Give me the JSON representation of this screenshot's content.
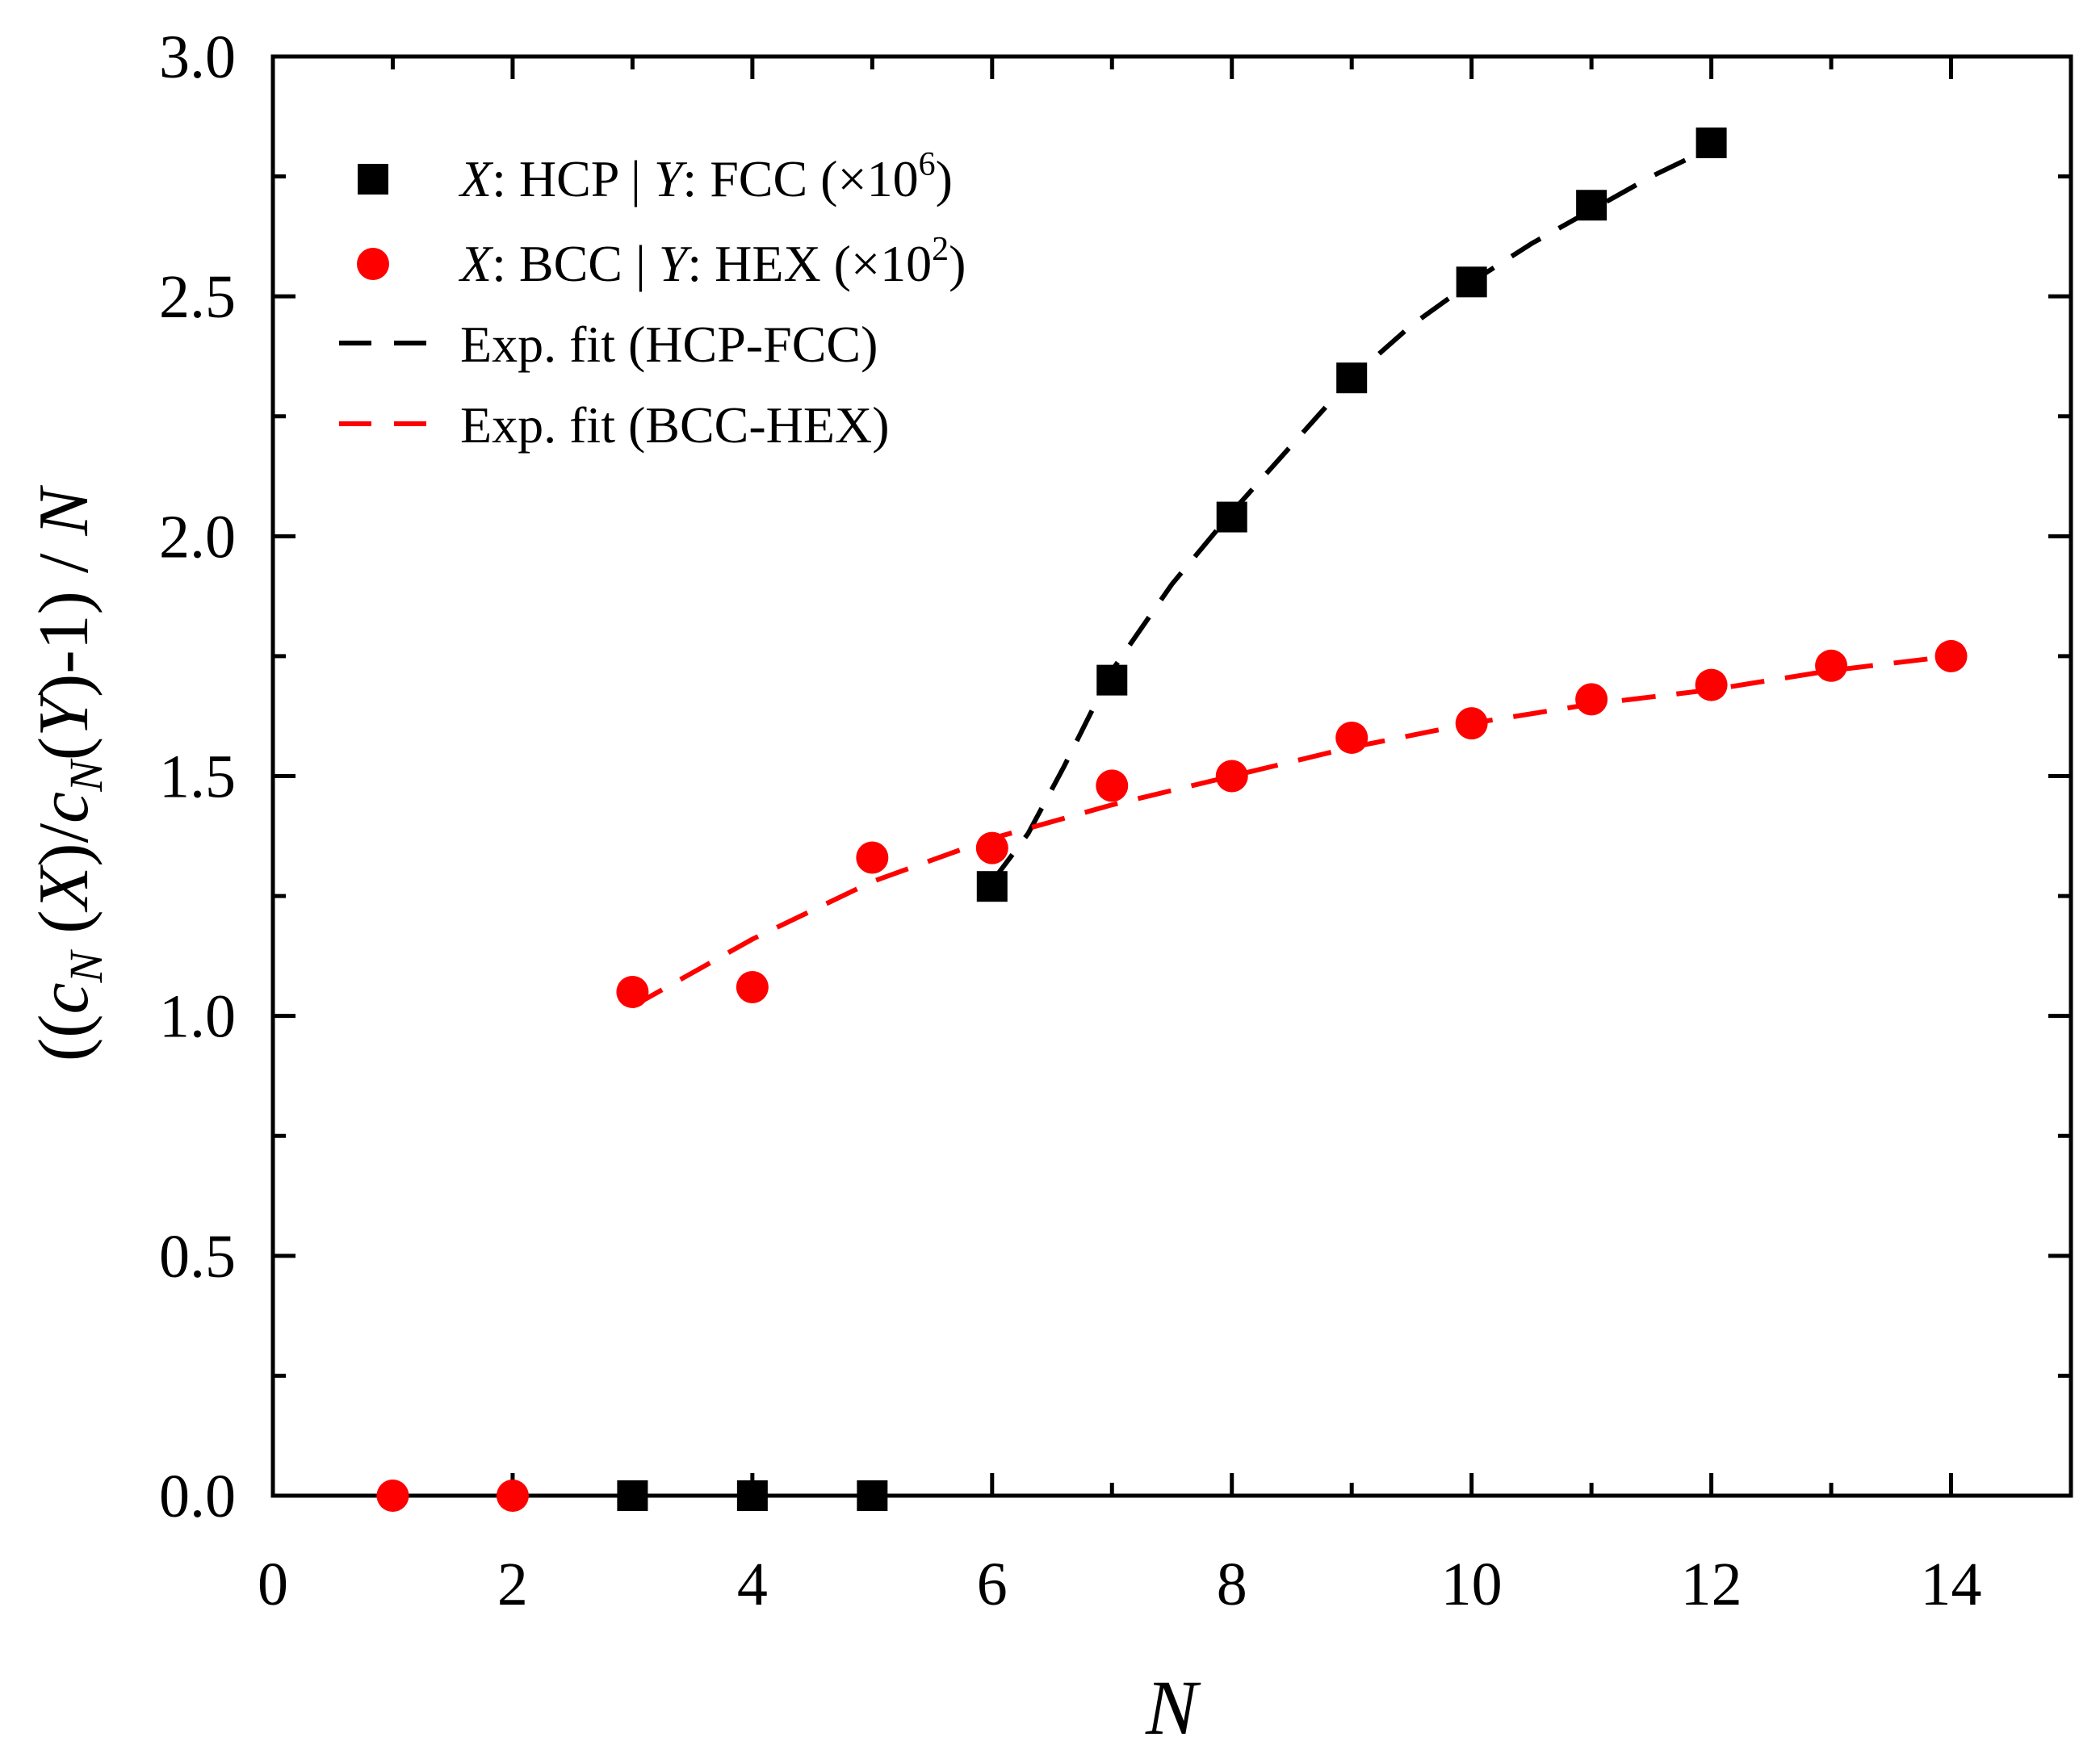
{
  "chart_data": {
    "type": "scatter",
    "xlabel": "N",
    "ylabel_parts": [
      "((",
      "c",
      "N",
      " (",
      "X",
      ")/",
      "c",
      "N",
      "(",
      "Y",
      ")-1) / ",
      "N"
    ],
    "xlim": [
      0,
      15
    ],
    "ylim": [
      0,
      3.0
    ],
    "x_ticks": [
      0,
      2,
      4,
      6,
      8,
      10,
      12,
      14
    ],
    "x_tick_labels": [
      "0",
      "2",
      "4",
      "6",
      "8",
      "10",
      "12",
      "14"
    ],
    "y_ticks": [
      0,
      0.5,
      1.0,
      1.5,
      2.0,
      2.5,
      3.0
    ],
    "y_tick_labels": [
      "0.0",
      "0.5",
      "1.0",
      "1.5",
      "2.0",
      "2.5",
      "3.0"
    ],
    "legend_position": "top-left",
    "series": [
      {
        "name": "X: HCP | Y: FCC (×10^6)",
        "legend": {
          "x": "X",
          "sep1": ": HCP | ",
          "y": "Y",
          "sep2": ": FCC (×10",
          "exp": "6",
          "end": ")"
        },
        "marker": "square",
        "color": "#000000",
        "x": [
          3,
          4,
          5,
          6,
          7,
          8,
          9,
          10,
          11,
          12
        ],
        "y": [
          0.0,
          0.0,
          0.0,
          1.27,
          1.7,
          2.04,
          2.33,
          2.53,
          2.69,
          2.82
        ]
      },
      {
        "name": "X: BCC | Y: HEX (×10^2)",
        "legend": {
          "x": "X",
          "sep1": ": BCC | ",
          "y": "Y",
          "sep2": ": HEX (×10",
          "exp": "2",
          "end": ")"
        },
        "marker": "circle",
        "color": "#ff0000",
        "x": [
          1,
          2,
          3,
          4,
          5,
          6,
          7,
          8,
          9,
          10,
          11,
          12,
          13,
          14
        ],
        "y": [
          0.0,
          0.0,
          1.05,
          1.06,
          1.33,
          1.35,
          1.48,
          1.5,
          1.58,
          1.61,
          1.66,
          1.69,
          1.73,
          1.75
        ]
      }
    ],
    "fits": [
      {
        "name": "Exp. fit (HCP-FCC)",
        "style": "dashed",
        "color": "#000000",
        "x": [
          6.0,
          6.3,
          6.6,
          7.0,
          7.5,
          8.0,
          8.5,
          9.0,
          9.5,
          10.0,
          10.5,
          11.0,
          11.5,
          12.0
        ],
        "y": [
          1.28,
          1.38,
          1.52,
          1.72,
          1.9,
          2.05,
          2.19,
          2.33,
          2.44,
          2.53,
          2.61,
          2.68,
          2.75,
          2.81
        ]
      },
      {
        "name": "Exp. fit (BCC-HEX)",
        "style": "dashed",
        "color": "#ff0000",
        "x": [
          3,
          4,
          5,
          6,
          7,
          8,
          9,
          10,
          11,
          12,
          13,
          14
        ],
        "y": [
          1.02,
          1.16,
          1.28,
          1.37,
          1.44,
          1.5,
          1.56,
          1.61,
          1.65,
          1.68,
          1.72,
          1.75
        ]
      }
    ]
  }
}
